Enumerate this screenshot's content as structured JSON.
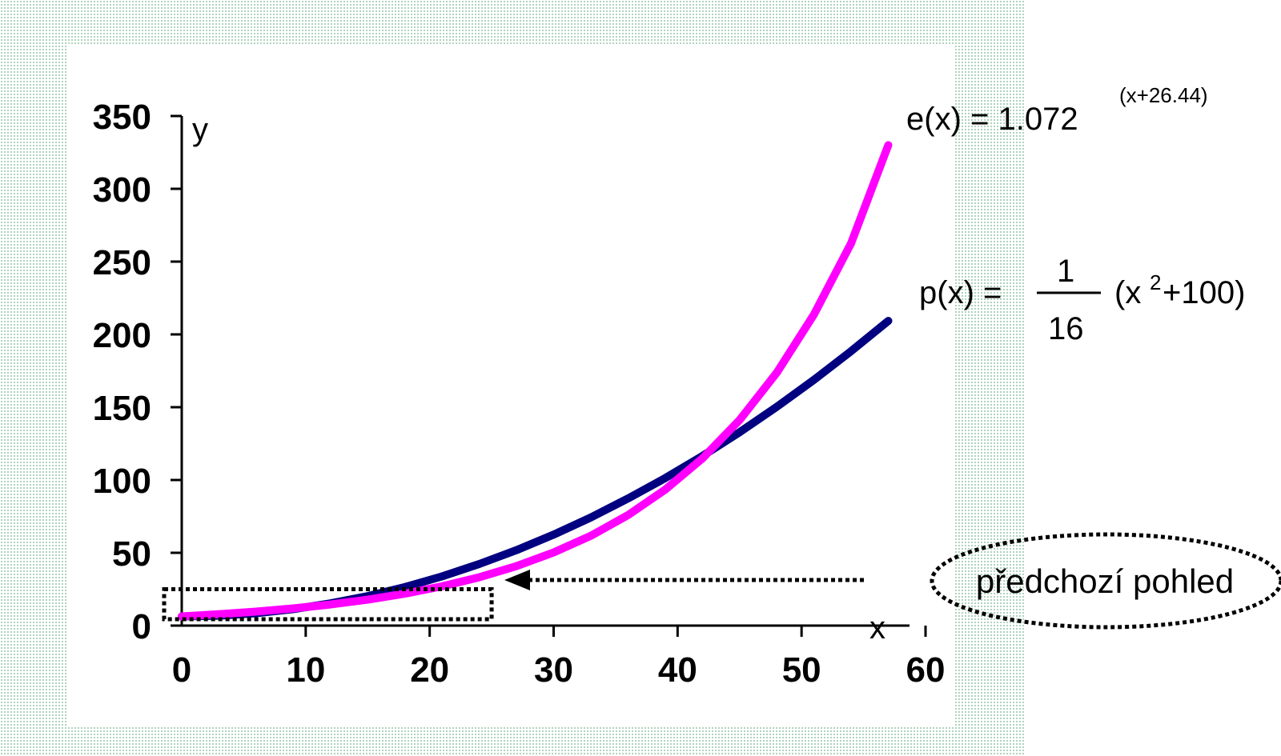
{
  "chart_data": {
    "type": "line",
    "xlabel": "x",
    "ylabel": "y",
    "xlim": [
      0,
      60
    ],
    "ylim": [
      0,
      350
    ],
    "x_ticks": [
      0,
      10,
      20,
      30,
      40,
      50,
      60
    ],
    "y_ticks": [
      0,
      50,
      100,
      150,
      200,
      250,
      300,
      350
    ],
    "x_tick_labels": [
      "0",
      "10",
      "20",
      "30",
      "40",
      "50",
      "60"
    ],
    "y_tick_labels": [
      "0",
      "50",
      "100",
      "150",
      "200",
      "250",
      "300",
      "350"
    ],
    "grid": false,
    "x": [
      0,
      3,
      6,
      9,
      12,
      15,
      18,
      21,
      24,
      27,
      30,
      33,
      36,
      39,
      42,
      45,
      48,
      51,
      54,
      57
    ],
    "series": [
      {
        "color": "#000080",
        "values": [
          6.3,
          6.8,
          8.5,
          11.3,
          15.3,
          20.3,
          26.5,
          33.8,
          42.3,
          51.8,
          62.5,
          74.3,
          87.3,
          101.3,
          116.5,
          132.8,
          150.3,
          168.8,
          188.5,
          209.3
        ]
      },
      {
        "color": "#FF00FF",
        "values": [
          6.3,
          7.8,
          9.6,
          11.8,
          14.5,
          17.8,
          21.9,
          27.0,
          33.2,
          40.8,
          50.2,
          61.7,
          75.9,
          93.4,
          114.8,
          141.2,
          173.7,
          213.6,
          262.7,
          330.0
        ]
      }
    ],
    "annotations": {
      "e_formula_main": "e(x) = 1.072",
      "e_formula_exponent": "(x+26.44)",
      "p_formula_prefix": "p(x) = ",
      "p_formula_numerator": "1",
      "p_formula_denominator": "16",
      "p_formula_suffix_open": "(x",
      "p_formula_suffix_exp": "2",
      "p_formula_suffix_close": "+100)",
      "callout_text": "předchozí pohled",
      "callout_box_x": [
        0,
        25
      ],
      "callout_box_y": [
        0,
        25
      ]
    }
  }
}
